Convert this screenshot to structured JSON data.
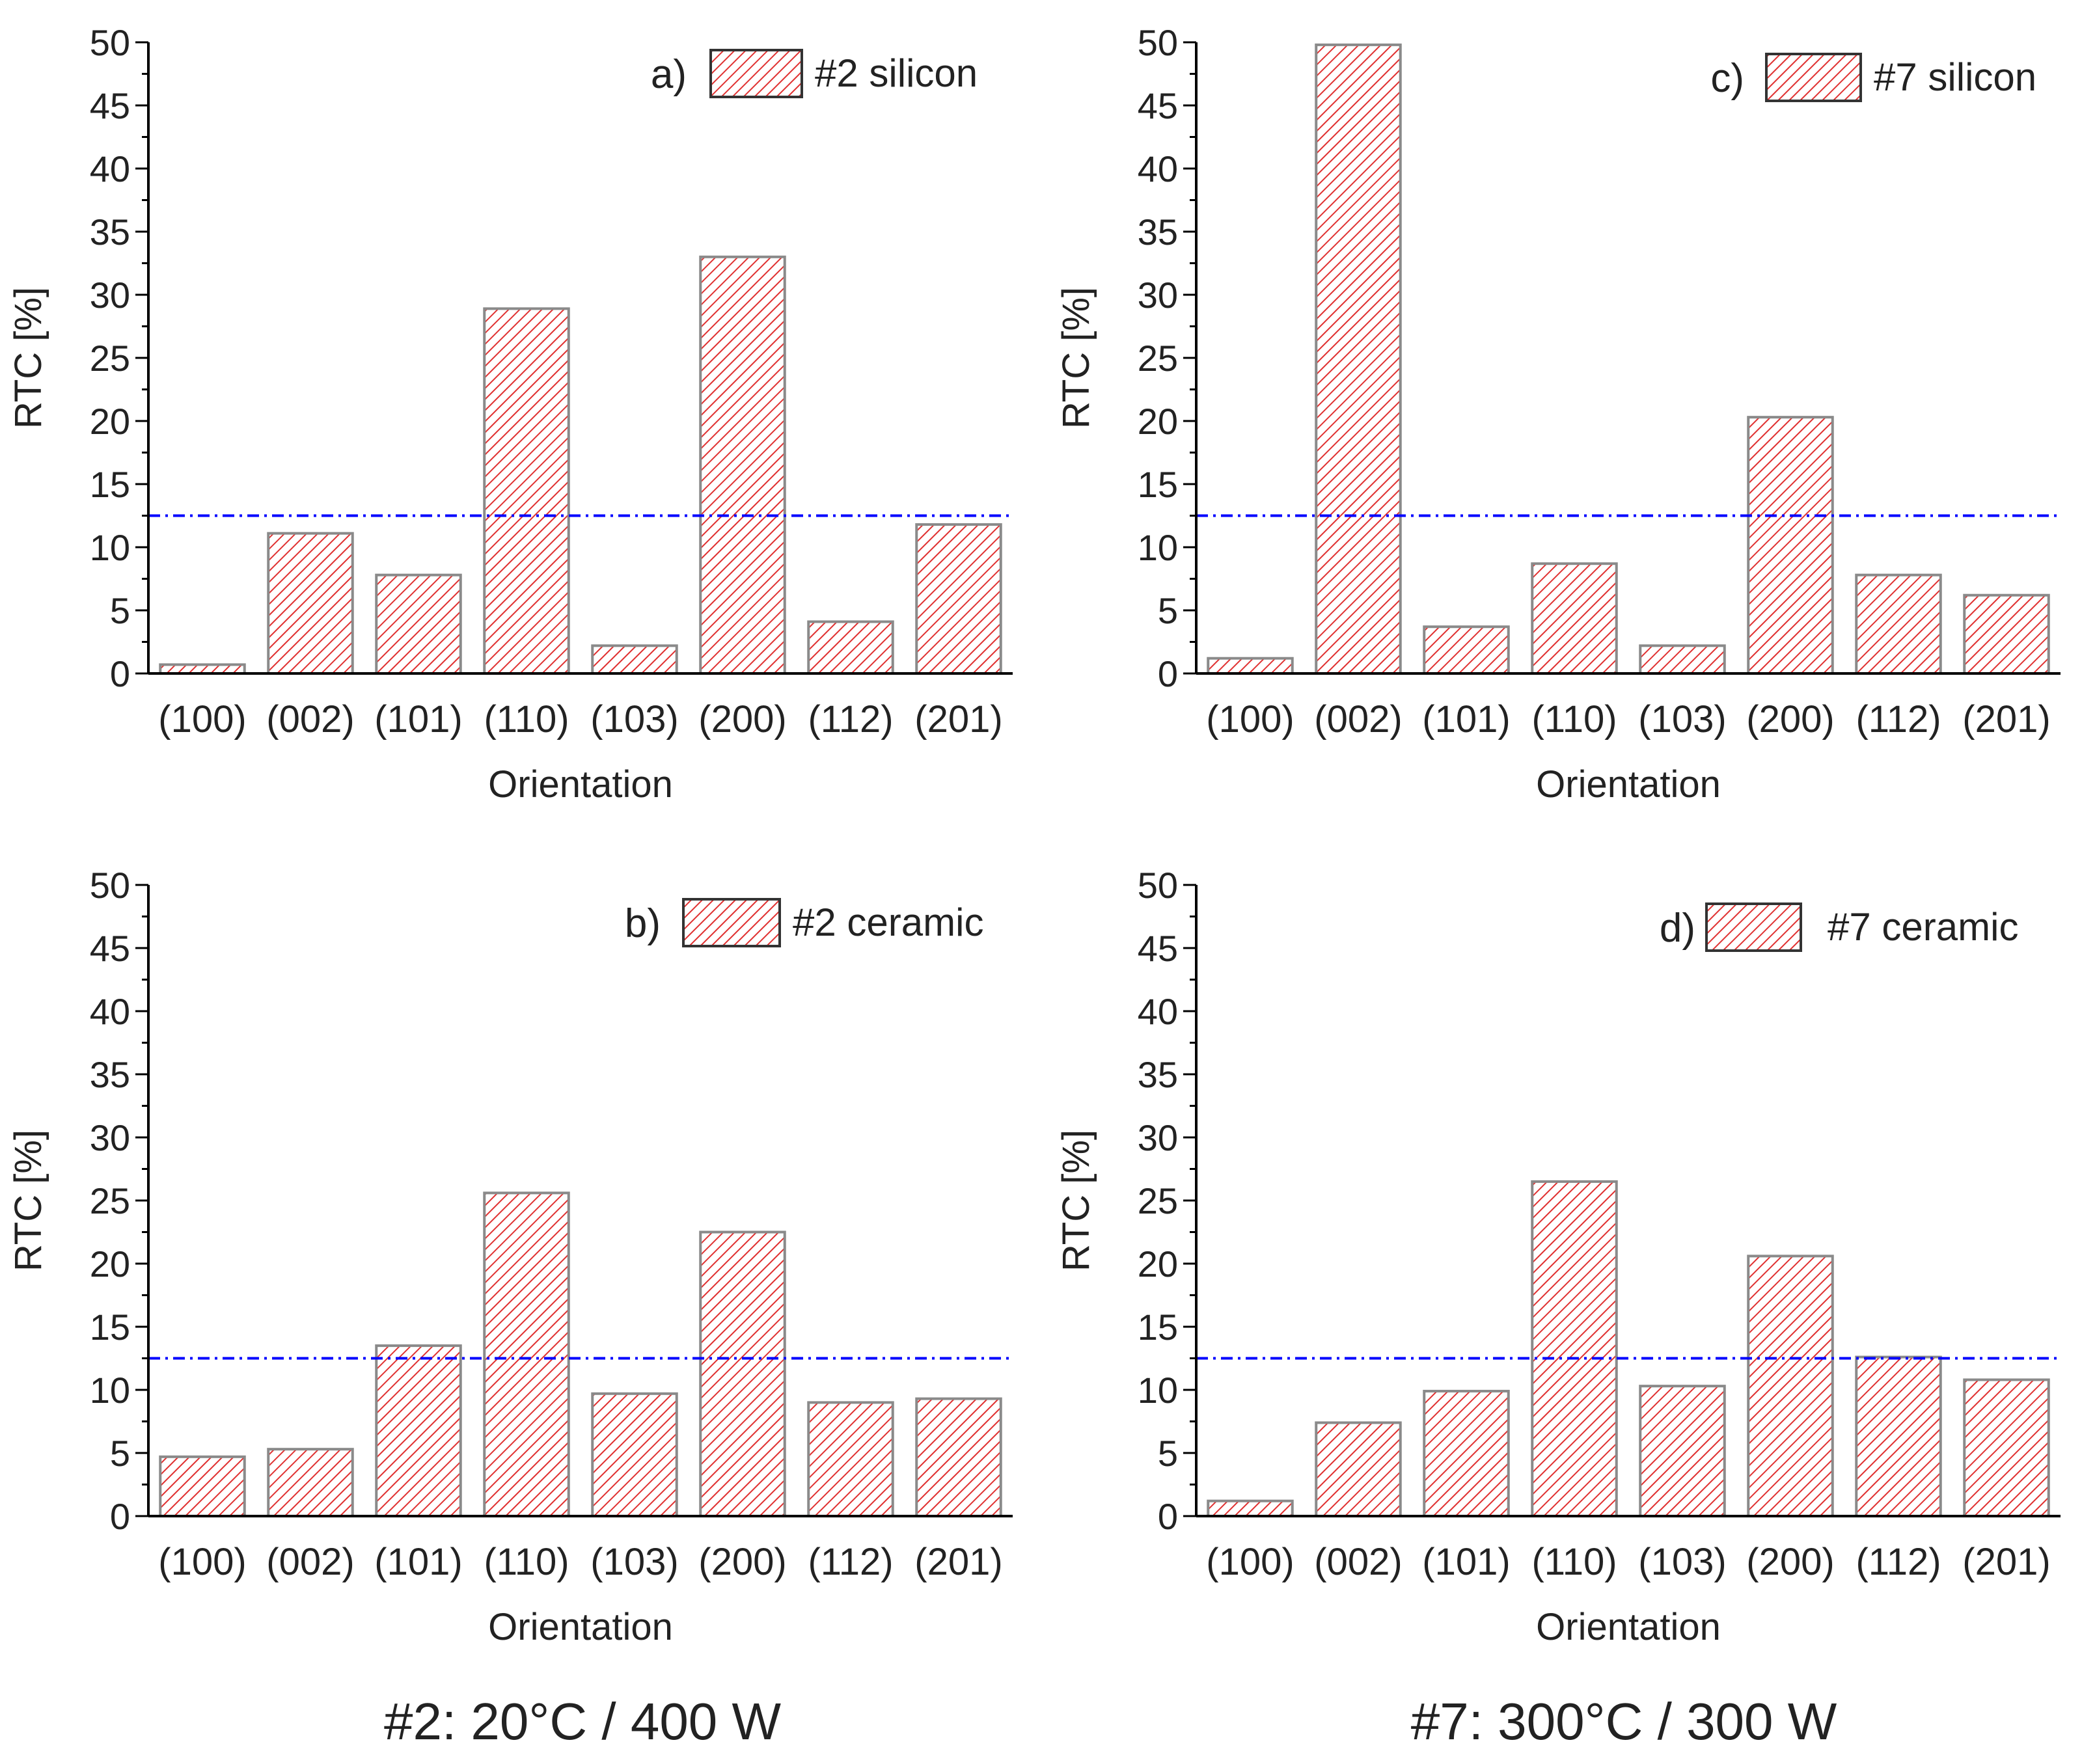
{
  "colors": {
    "bar_hatch": "#e03030",
    "bar_stroke": "#8a8a8a",
    "reference_line": "#0000ff",
    "axis": "#000000",
    "text": "#222222"
  },
  "captions": {
    "left": "#2: 20°C / 400 W",
    "right": "#7: 300°C / 300 W"
  },
  "chart_data": [
    {
      "type": "bar",
      "panel": "a)",
      "legend": "#2 silicon",
      "categories": [
        "(100)",
        "(002)",
        "(101)",
        "(110)",
        "(103)",
        "(200)",
        "(112)",
        "(201)"
      ],
      "values": [
        0.7,
        11.1,
        7.8,
        28.9,
        2.2,
        33.0,
        4.1,
        11.8
      ],
      "reference_line": 12.5,
      "xlabel": "Orientation",
      "ylabel": "RTC [%]",
      "ylim": [
        0,
        50
      ],
      "yticks": [
        "0",
        "5",
        "10",
        "15",
        "20",
        "25",
        "30",
        "35",
        "40",
        "45",
        "50"
      ]
    },
    {
      "type": "bar",
      "panel": "c)",
      "legend": "#7 silicon",
      "categories": [
        "(100)",
        "(002)",
        "(101)",
        "(110)",
        "(103)",
        "(200)",
        "(112)",
        "(201)"
      ],
      "values": [
        1.2,
        49.8,
        3.7,
        8.7,
        2.2,
        20.3,
        7.8,
        6.2
      ],
      "reference_line": 12.5,
      "xlabel": "Orientation",
      "ylabel": "RTC [%]",
      "ylim": [
        0,
        50
      ],
      "yticks": [
        "0",
        "5",
        "10",
        "15",
        "20",
        "25",
        "30",
        "35",
        "40",
        "45",
        "50"
      ]
    },
    {
      "type": "bar",
      "panel": "b)",
      "legend": "#2 ceramic",
      "categories": [
        "(100)",
        "(002)",
        "(101)",
        "(110)",
        "(103)",
        "(200)",
        "(112)",
        "(201)"
      ],
      "values": [
        4.7,
        5.3,
        13.5,
        25.6,
        9.7,
        22.5,
        9.0,
        9.3
      ],
      "reference_line": 12.5,
      "xlabel": "Orientation",
      "ylabel": "RTC [%]",
      "ylim": [
        0,
        50
      ],
      "yticks": [
        "0",
        "5",
        "10",
        "15",
        "20",
        "25",
        "30",
        "35",
        "40",
        "45",
        "50"
      ]
    },
    {
      "type": "bar",
      "panel": "d)",
      "legend": "#7 ceramic",
      "categories": [
        "(100)",
        "(002)",
        "(101)",
        "(110)",
        "(103)",
        "(200)",
        "(112)",
        "(201)"
      ],
      "values": [
        1.2,
        7.4,
        9.9,
        26.5,
        10.3,
        20.6,
        12.6,
        10.8
      ],
      "reference_line": 12.5,
      "xlabel": "Orientation",
      "ylabel": "RTC [%]",
      "ylim": [
        0,
        50
      ],
      "yticks": [
        "0",
        "5",
        "10",
        "15",
        "20",
        "25",
        "30",
        "35",
        "40",
        "45",
        "50"
      ]
    }
  ]
}
